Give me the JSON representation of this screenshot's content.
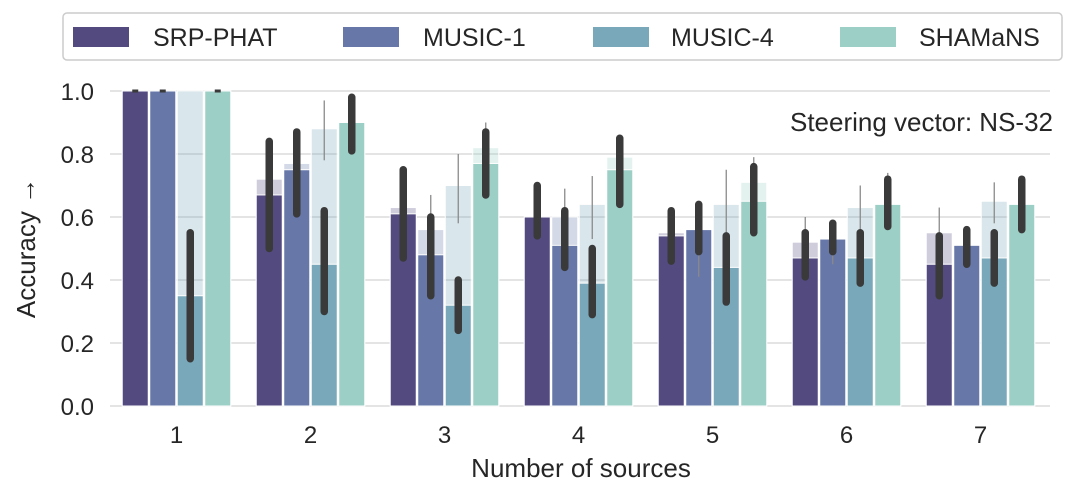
{
  "chart_data": {
    "type": "bar",
    "title": "",
    "annotation": "Steering vector: NS-32",
    "xlabel": "Number of sources",
    "ylabel": "Accuracy →",
    "ylim": [
      0.0,
      1.0
    ],
    "yticks": [
      "0.0",
      "0.2",
      "0.4",
      "0.6",
      "0.8",
      "1.0"
    ],
    "grid": "horizontal",
    "legend_position": "top",
    "categories": [
      "1",
      "2",
      "3",
      "4",
      "5",
      "6",
      "7"
    ],
    "series": [
      {
        "name": "SRP-PHAT",
        "color": "#534a80",
        "values": [
          1.0,
          0.67,
          0.61,
          0.6,
          0.54,
          0.47,
          0.45
        ],
        "error_low": [
          1.0,
          0.5,
          0.47,
          0.54,
          0.46,
          0.41,
          0.35
        ],
        "error_high": [
          1.0,
          0.84,
          0.75,
          0.7,
          0.62,
          0.55,
          0.54
        ],
        "ghost_values": [
          1.0,
          0.72,
          0.63,
          0.59,
          0.55,
          0.52,
          0.55
        ],
        "ghost_error_low": [
          1.0,
          0.62,
          0.55,
          0.53,
          0.47,
          0.47,
          0.46
        ],
        "ghost_error_high": [
          1.0,
          0.85,
          0.72,
          0.66,
          0.63,
          0.6,
          0.63
        ]
      },
      {
        "name": "MUSIC-1",
        "color": "#6677a8",
        "values": [
          1.0,
          0.75,
          0.48,
          0.51,
          0.56,
          0.53,
          0.51
        ],
        "error_low": [
          1.0,
          0.61,
          0.35,
          0.44,
          0.49,
          0.49,
          0.45
        ],
        "error_high": [
          1.0,
          0.87,
          0.6,
          0.62,
          0.64,
          0.58,
          0.56
        ],
        "ghost_values": [
          1.0,
          0.77,
          0.56,
          0.6,
          0.55,
          0.53,
          0.51
        ],
        "ghost_error_low": [
          1.0,
          0.67,
          0.46,
          0.53,
          0.41,
          0.45,
          0.45
        ],
        "ghost_error_high": [
          1.0,
          0.88,
          0.67,
          0.69,
          0.65,
          0.59,
          0.57
        ]
      },
      {
        "name": "MUSIC-4",
        "color": "#78a8ba",
        "values": [
          0.35,
          0.45,
          0.32,
          0.39,
          0.44,
          0.47,
          0.47
        ],
        "error_low": [
          0.15,
          0.3,
          0.24,
          0.29,
          0.33,
          0.39,
          0.39
        ],
        "error_high": [
          0.55,
          0.62,
          0.4,
          0.5,
          0.54,
          0.55,
          0.55
        ],
        "ghost_values": [
          1.0,
          0.88,
          0.7,
          0.64,
          0.64,
          0.63,
          0.65
        ],
        "ghost_error_low": [
          1.0,
          0.78,
          0.58,
          0.53,
          0.5,
          0.55,
          0.58
        ],
        "ghost_error_high": [
          1.0,
          0.97,
          0.8,
          0.73,
          0.75,
          0.7,
          0.71
        ]
      },
      {
        "name": "SHAMaNS",
        "color": "#9ccfc5",
        "values": [
          1.0,
          0.9,
          0.77,
          0.75,
          0.65,
          0.64,
          0.64
        ],
        "error_low": [
          1.0,
          0.81,
          0.67,
          0.64,
          0.55,
          0.57,
          0.56
        ],
        "error_high": [
          1.0,
          0.98,
          0.87,
          0.85,
          0.76,
          0.72,
          0.72
        ],
        "ghost_values": [
          1.0,
          0.9,
          0.82,
          0.79,
          0.71,
          0.64,
          0.64
        ],
        "ghost_error_low": [
          1.0,
          0.81,
          0.73,
          0.7,
          0.63,
          0.57,
          0.57
        ],
        "ghost_error_high": [
          1.0,
          0.98,
          0.9,
          0.86,
          0.79,
          0.74,
          0.72
        ]
      }
    ]
  }
}
